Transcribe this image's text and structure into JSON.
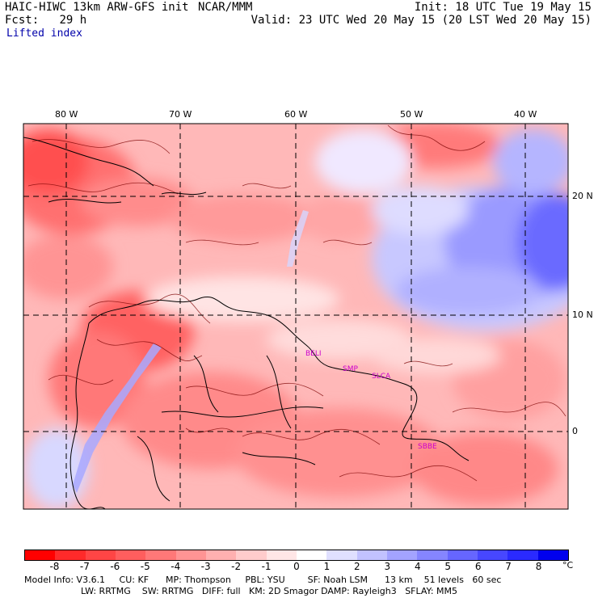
{
  "header": {
    "model_title": "HAIC-HIWC 13km ARW-GFS init",
    "center": "NCAR/MMM",
    "init": "Init: 18 UTC Tue 19 May 15",
    "fcst_label": "Fcst:",
    "fcst_value": "29 h",
    "valid": "Valid: 23 UTC Wed 20 May 15 (20 LST Wed 20 May 15)",
    "field": "Lifted index"
  },
  "map": {
    "longitude_labels": [
      "80 W",
      "70 W",
      "60 W",
      "50 W",
      "40 W"
    ],
    "latitude_labels": [
      "20 N",
      "10 N",
      "0"
    ],
    "stations": [
      "BELI",
      "SMP",
      "SLCA",
      "SBBE"
    ]
  },
  "colorbar": {
    "labels": [
      "-8",
      "-7",
      "-6",
      "-5",
      "-4",
      "-3",
      "-2",
      "-1",
      "0",
      "1",
      "2",
      "3",
      "4",
      "5",
      "6",
      "7",
      "8"
    ],
    "unit": "°C",
    "colors": [
      "#ff0000",
      "#ff2a2a",
      "#ff4545",
      "#ff5e5e",
      "#ff7878",
      "#ff9494",
      "#ffb0b0",
      "#ffcccc",
      "#ffe6e6",
      "#ffffff",
      "#e0e0ff",
      "#c2c2ff",
      "#a3a3ff",
      "#8585ff",
      "#6666ff",
      "#4747ff",
      "#2a2aff",
      "#0000ee"
    ]
  },
  "footer": {
    "line1": "Model Info: V3.6.1     CU: KF      MP: Thompson     PBL: YSU        SF: Noah LSM      13 km    51 levels   60 sec",
    "line2": "LW: RRTMG    SW: RRTMG   DIFF: full   KM: 2D Smagor DAMP: Rayleigh3   SFLAY: MM5"
  }
}
